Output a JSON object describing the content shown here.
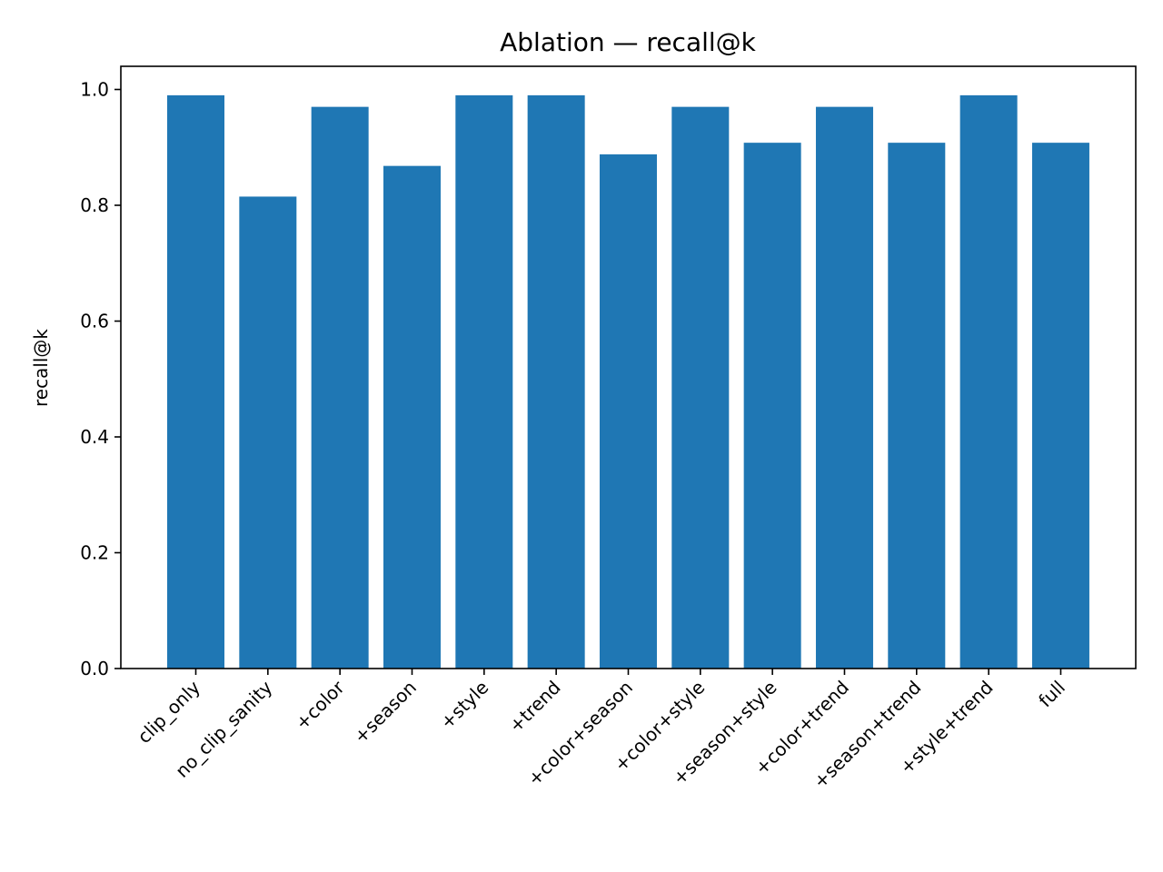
{
  "chart_data": {
    "type": "bar",
    "title": "Ablation — recall@k",
    "xlabel": "",
    "ylabel": "recall@k",
    "categories": [
      "clip_only",
      "no_clip_sanity",
      "+color",
      "+season",
      "+style",
      "+trend",
      "+color+season",
      "+color+style",
      "+season+style",
      "+color+trend",
      "+season+trend",
      "+style+trend",
      "full"
    ],
    "values": [
      0.99,
      0.815,
      0.97,
      0.868,
      0.99,
      0.99,
      0.888,
      0.97,
      0.908,
      0.97,
      0.908,
      0.99,
      0.908
    ],
    "ylim": [
      0,
      1.04
    ],
    "yticks": [
      "0.0",
      "0.2",
      "0.4",
      "0.6",
      "0.8",
      "1.0"
    ],
    "bar_color": "#1f77b4",
    "grid": false,
    "legend": "none"
  }
}
